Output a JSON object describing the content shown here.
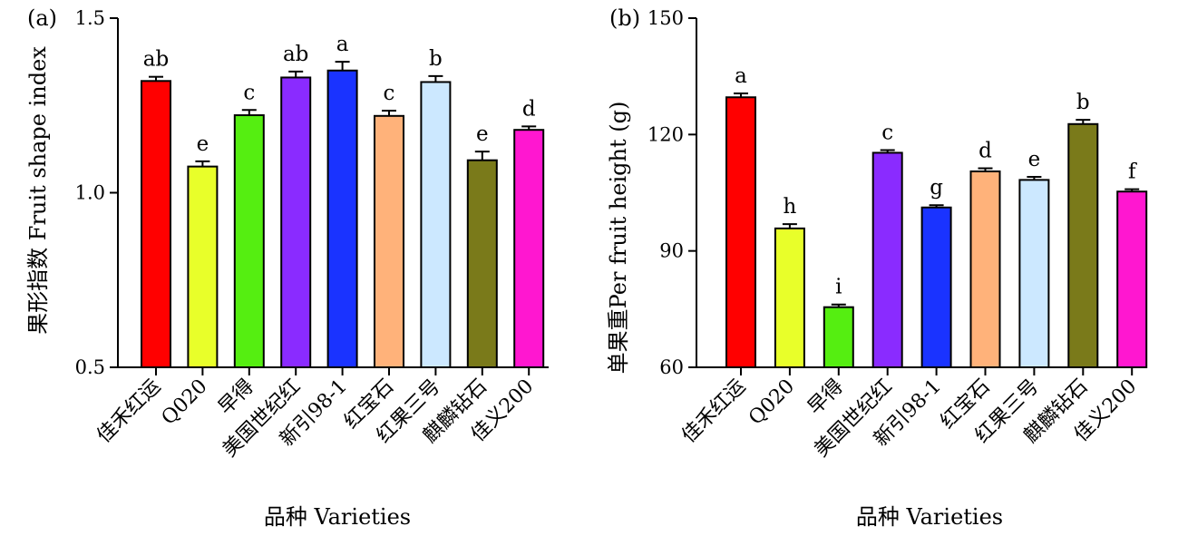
{
  "chart_data": [
    {
      "type": "bar",
      "panel_label": "(a)",
      "ylabel": "果形指数 Fruit shape index",
      "xlabel": "品种 Varieties",
      "ylim": [
        0.5,
        1.5
      ],
      "yticks": [
        "0.5",
        "1.0",
        "1.5"
      ],
      "ytick_values": [
        0.5,
        1.0,
        1.5
      ],
      "categories": [
        "佳禾红运",
        "Q020",
        "早得",
        "美国世纪红",
        "新引98-1",
        "红宝石",
        "红果三号",
        "麒麟钻石",
        "佳义200"
      ],
      "values": [
        1.32,
        1.075,
        1.222,
        1.33,
        1.35,
        1.22,
        1.317,
        1.093,
        1.18
      ],
      "errors": [
        0.012,
        0.015,
        0.015,
        0.017,
        0.025,
        0.015,
        0.017,
        0.025,
        0.01
      ],
      "significance": [
        "ab",
        "e",
        "c",
        "ab",
        "a",
        "c",
        "b",
        "e",
        "d"
      ],
      "colors": [
        "#ff0000",
        "#e8ff2a",
        "#55ee11",
        "#8a2bff",
        "#1a33ff",
        "#ffb27a",
        "#cce8ff",
        "#7a7a1a",
        "#ff17d0"
      ],
      "grid": false,
      "legend": "none"
    },
    {
      "type": "bar",
      "panel_label": "(b)",
      "ylabel": "单果重Per fruit height (g)",
      "xlabel": "品种 Varieties",
      "ylim": [
        60,
        150
      ],
      "yticks": [
        "60",
        "90",
        "120",
        "150"
      ],
      "ytick_values": [
        60,
        90,
        120,
        150
      ],
      "categories": [
        "佳禾红运",
        "Q020",
        "早得",
        "美国世纪红",
        "新引98-1",
        "红宝石",
        "红果三号",
        "麒麟钻石",
        "佳义200"
      ],
      "values": [
        129.6,
        95.8,
        75.5,
        115.3,
        101.2,
        110.5,
        108.3,
        122.7,
        105.3
      ],
      "errors": [
        1.0,
        1.1,
        0.7,
        0.7,
        0.6,
        0.8,
        0.8,
        1.1,
        0.6
      ],
      "significance": [
        "a",
        "h",
        "i",
        "c",
        "g",
        "d",
        "e",
        "b",
        "f"
      ],
      "colors": [
        "#ff0000",
        "#e8ff2a",
        "#55ee11",
        "#8a2bff",
        "#1a33ff",
        "#ffb27a",
        "#cce8ff",
        "#7a7a1a",
        "#ff17d0"
      ],
      "grid": false,
      "legend": "none"
    }
  ]
}
